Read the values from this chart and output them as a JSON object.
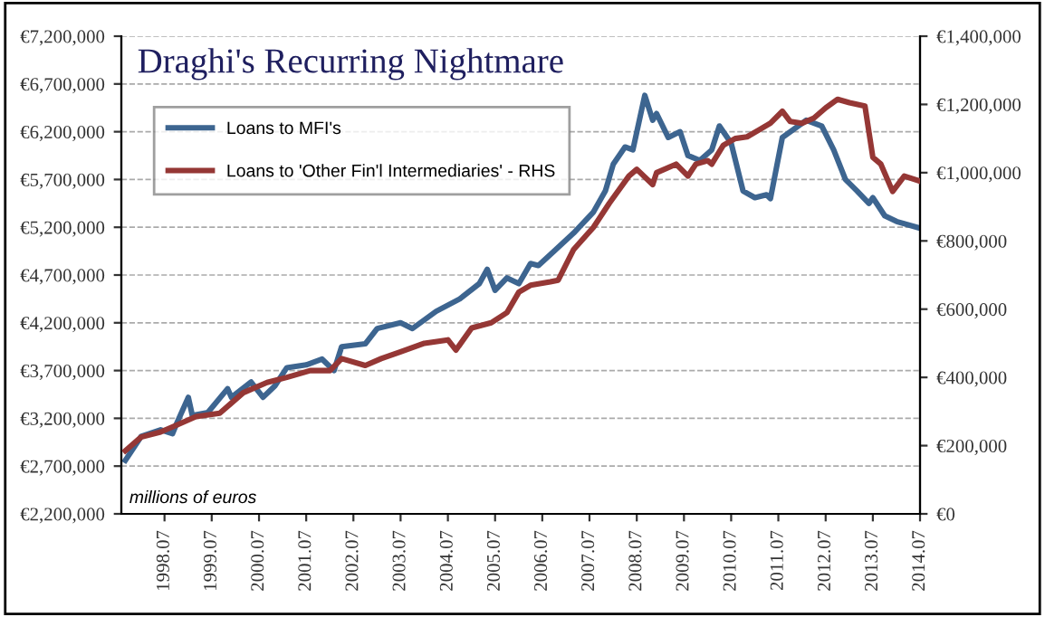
{
  "chart_data": {
    "type": "line",
    "title": "Draghi's Recurring Nightmare",
    "annotations": [
      "millions of euros"
    ],
    "series": [
      {
        "name": "Loans to MFI's",
        "color": "#3d6590",
        "x": [
          "1997-09",
          "1998-01",
          "1998-06",
          "1998-09",
          "1998-10",
          "1999-01",
          "1999-02",
          "1999-06",
          "1999-11",
          "1999-12",
          "2000-05",
          "2000-08",
          "2000-11",
          "2001-02",
          "2001-07",
          "2001-11",
          "2002-02",
          "2002-04",
          "2002-10",
          "2003-01",
          "2003-07",
          "2003-10",
          "2004-04",
          "2004-10",
          "2005-03",
          "2005-05",
          "2005-07",
          "2005-10",
          "2006-01",
          "2006-04",
          "2006-06",
          "2006-10",
          "2007-03",
          "2007-08",
          "2007-11",
          "2008-01",
          "2008-04",
          "2008-06",
          "2008-09",
          "2008-11",
          "2008-12",
          "2009-03",
          "2009-06",
          "2009-08",
          "2009-11",
          "2010-02",
          "2010-04",
          "2010-07",
          "2010-10",
          "2011-01",
          "2011-04",
          "2011-05",
          "2011-08",
          "2011-11",
          "2012-02",
          "2012-06",
          "2012-09",
          "2012-12",
          "2013-03",
          "2013-06",
          "2013-07",
          "2013-10",
          "2014-01",
          "2014-07"
        ],
        "values": [
          2760000,
          3010000,
          3080000,
          3040000,
          3140000,
          3420000,
          3230000,
          3260000,
          3510000,
          3420000,
          3580000,
          3420000,
          3540000,
          3730000,
          3760000,
          3820000,
          3700000,
          3950000,
          3980000,
          4140000,
          4200000,
          4140000,
          4320000,
          4450000,
          4610000,
          4760000,
          4540000,
          4670000,
          4610000,
          4820000,
          4800000,
          4950000,
          5140000,
          5360000,
          5580000,
          5860000,
          6040000,
          6010000,
          6580000,
          6320000,
          6390000,
          6140000,
          6200000,
          5950000,
          5900000,
          6010000,
          6260000,
          6080000,
          5580000,
          5510000,
          5540000,
          5500000,
          6140000,
          6230000,
          6320000,
          6260000,
          6010000,
          5700000,
          5580000,
          5450000,
          5510000,
          5320000,
          5260000,
          5190000
        ]
      },
      {
        "name": "Loans to 'Other Fin'l Intermediaries' - RHS",
        "color": "#953735",
        "axis": "y2",
        "x": [
          "1997-09",
          "1998-01",
          "1998-06",
          "1998-10",
          "1999-03",
          "1999-09",
          "2000-03",
          "2000-09",
          "2001-02",
          "2001-08",
          "2002-01",
          "2002-04",
          "2002-10",
          "2003-02",
          "2003-07",
          "2004-01",
          "2004-07",
          "2004-09",
          "2005-01",
          "2005-06",
          "2005-10",
          "2006-01",
          "2006-04",
          "2006-09",
          "2006-11",
          "2007-03",
          "2007-08",
          "2007-12",
          "2008-05",
          "2008-07",
          "2008-11",
          "2008-12",
          "2009-05",
          "2009-08",
          "2009-10",
          "2010-01",
          "2010-02",
          "2010-05",
          "2010-08",
          "2010-11",
          "2011-02",
          "2011-05",
          "2011-08",
          "2011-10",
          "2012-01",
          "2012-04",
          "2012-07",
          "2012-10",
          "2013-01",
          "2013-05",
          "2013-07",
          "2013-09",
          "2013-12",
          "2014-03",
          "2014-07"
        ],
        "values": [
          185000,
          225000,
          240000,
          260000,
          285000,
          295000,
          355000,
          385000,
          400000,
          420000,
          420000,
          455000,
          435000,
          455000,
          475000,
          500000,
          510000,
          480000,
          545000,
          560000,
          590000,
          650000,
          670000,
          680000,
          685000,
          775000,
          840000,
          910000,
          990000,
          1010000,
          965000,
          1000000,
          1025000,
          990000,
          1025000,
          1035000,
          1025000,
          1080000,
          1100000,
          1105000,
          1125000,
          1145000,
          1180000,
          1150000,
          1145000,
          1160000,
          1190000,
          1215000,
          1205000,
          1195000,
          1045000,
          1025000,
          945000,
          990000,
          975000
        ]
      }
    ],
    "xlim": [
      "1997-08",
      "2014-07"
    ],
    "xticks": [
      {
        "value": "1998-07",
        "label": "1998.07"
      },
      {
        "value": "1999-07",
        "label": "1999.07"
      },
      {
        "value": "2000-07",
        "label": "2000.07"
      },
      {
        "value": "2001-07",
        "label": "2001.07"
      },
      {
        "value": "2002-07",
        "label": "2002.07"
      },
      {
        "value": "2003-07",
        "label": "2003.07"
      },
      {
        "value": "2004-07",
        "label": "2004.07"
      },
      {
        "value": "2005-07",
        "label": "2005.07"
      },
      {
        "value": "2006-07",
        "label": "2006.07"
      },
      {
        "value": "2007-07",
        "label": "2007.07"
      },
      {
        "value": "2008-07",
        "label": "2008.07"
      },
      {
        "value": "2009-07",
        "label": "2009.07"
      },
      {
        "value": "2010-07",
        "label": "2010.07"
      },
      {
        "value": "2011-07",
        "label": "2011.07"
      },
      {
        "value": "2012-07",
        "label": "2012.07"
      },
      {
        "value": "2013-07",
        "label": "2013.07"
      },
      {
        "value": "2014-07",
        "label": "2014.07"
      }
    ],
    "ylim": [
      2200000,
      7200000
    ],
    "yticks": [
      {
        "value": 2200000,
        "label": "€2,200,000"
      },
      {
        "value": 2700000,
        "label": "€2,700,000"
      },
      {
        "value": 3200000,
        "label": "€3,200,000"
      },
      {
        "value": 3700000,
        "label": "€3,700,000"
      },
      {
        "value": 4200000,
        "label": "€4,200,000"
      },
      {
        "value": 4700000,
        "label": "€4,700,000"
      },
      {
        "value": 5200000,
        "label": "€5,200,000"
      },
      {
        "value": 5700000,
        "label": "€5,700,000"
      },
      {
        "value": 6200000,
        "label": "€6,200,000"
      },
      {
        "value": 6700000,
        "label": "€6,700,000"
      },
      {
        "value": 7200000,
        "label": "€7,200,000"
      }
    ],
    "y2lim": [
      0,
      1400000
    ],
    "y2ticks": [
      {
        "value": 0,
        "label": "€0"
      },
      {
        "value": 200000,
        "label": "€200,000"
      },
      {
        "value": 400000,
        "label": "€400,000"
      },
      {
        "value": 600000,
        "label": "€600,000"
      },
      {
        "value": 800000,
        "label": "€800,000"
      },
      {
        "value": 1000000,
        "label": "€1,000,000"
      },
      {
        "value": 1200000,
        "label": "€1,200,000"
      },
      {
        "value": 1400000,
        "label": "€1,400,000"
      }
    ],
    "grid": "y",
    "legend": "top left",
    "line_style": "solid",
    "marker": "none"
  }
}
